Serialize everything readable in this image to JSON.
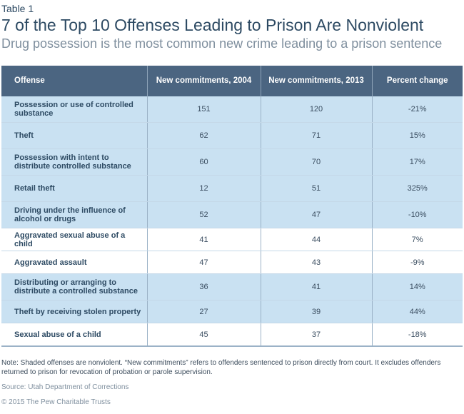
{
  "table_label": "Table 1",
  "title": "7 of the Top 10 Offenses Leading to Prison Are Nonviolent",
  "subtitle": "Drug possession is the most common new crime leading to a prison sentence",
  "colors": {
    "header_bg": "#4b6581",
    "shaded_row": "#c9e1f2",
    "text_dark": "#2d4a63",
    "muted_text": "#7f8f9e"
  },
  "table": {
    "headers": [
      "Offense",
      "New commitments, 2004",
      "New commitments, 2013",
      "Percent change"
    ],
    "rows": [
      {
        "offense": "Possession or use of controlled substance",
        "y2004": "151",
        "y2013": "120",
        "change": "-21%",
        "nonviolent": true
      },
      {
        "offense": "Theft",
        "y2004": "62",
        "y2013": "71",
        "change": "15%",
        "nonviolent": true
      },
      {
        "offense": "Possession with intent to distribute controlled substance",
        "y2004": "60",
        "y2013": "70",
        "change": "17%",
        "nonviolent": true
      },
      {
        "offense": "Retail theft",
        "y2004": "12",
        "y2013": "51",
        "change": "325%",
        "nonviolent": true
      },
      {
        "offense": "Driving under the influence of alcohol or drugs",
        "y2004": "52",
        "y2013": "47",
        "change": "-10%",
        "nonviolent": true
      },
      {
        "offense": "Aggravated sexual abuse of a child",
        "y2004": "41",
        "y2013": "44",
        "change": "7%",
        "nonviolent": false
      },
      {
        "offense": "Aggravated assault",
        "y2004": "47",
        "y2013": "43",
        "change": "-9%",
        "nonviolent": false
      },
      {
        "offense": "Distributing or arranging to distribute a controlled substance",
        "y2004": "36",
        "y2013": "41",
        "change": "14%",
        "nonviolent": true
      },
      {
        "offense": "Theft by receiving stolen property",
        "y2004": "27",
        "y2013": "39",
        "change": "44%",
        "nonviolent": true
      },
      {
        "offense": "Sexual abuse of a child",
        "y2004": "45",
        "y2013": "37",
        "change": "-18%",
        "nonviolent": false
      }
    ]
  },
  "note": "Note: Shaded offenses are nonviolent. “New commitments” refers to offenders sentenced to prison directly from court. It excludes offenders returned to prison for revocation of probation or parole supervision.",
  "source": "Source: Utah Department of Corrections",
  "copyright": "© 2015 The Pew Charitable Trusts"
}
